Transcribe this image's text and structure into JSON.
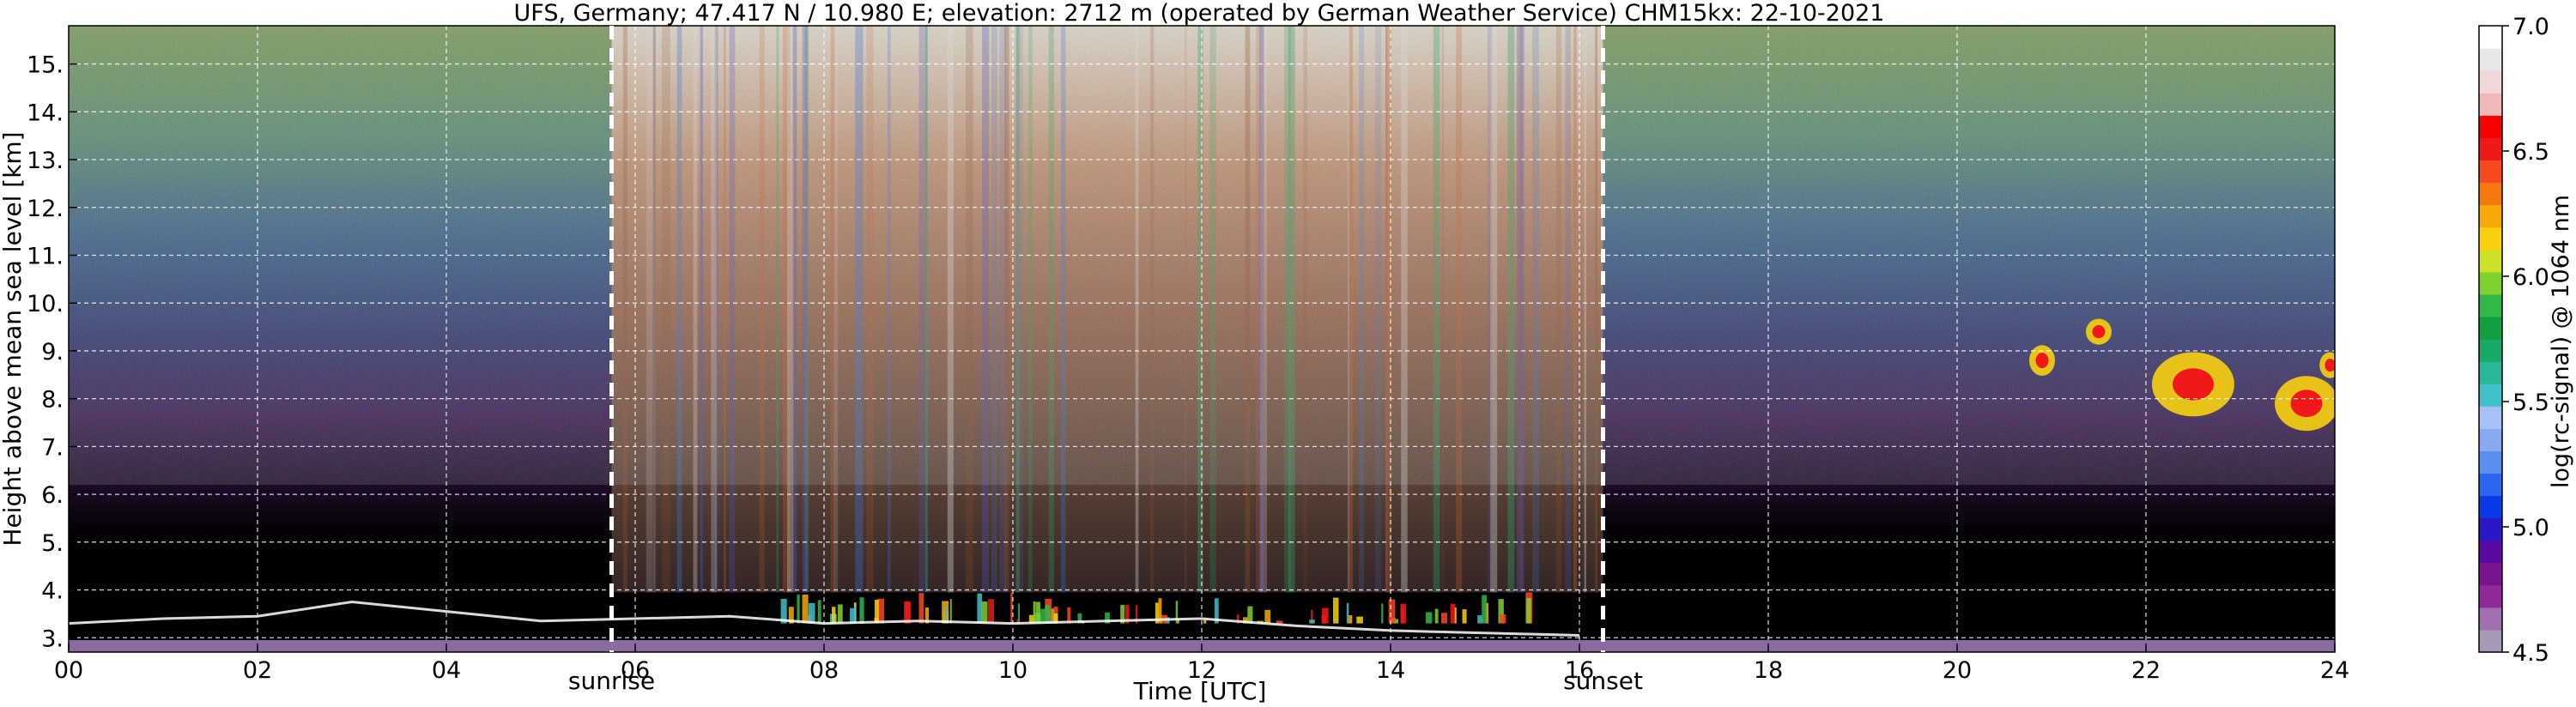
{
  "chart_data": {
    "type": "heatmap",
    "title": "UFS, Germany; 47.417 N / 10.980 E; elevation: 2712 m  (operated by German Weather Service)     CHM15kx: 22-10-2021",
    "xlabel": "Time [UTC]",
    "ylabel": "Height above mean sea level [km]",
    "xlim": [
      0,
      24
    ],
    "ylim": [
      2.7,
      15.8
    ],
    "x_ticks": [
      0,
      2,
      4,
      6,
      8,
      10,
      12,
      14,
      16,
      18,
      20,
      22,
      24
    ],
    "x_tick_labels": [
      "00",
      "02",
      "04",
      "06",
      "08",
      "10",
      "12",
      "14",
      "16",
      "18",
      "20",
      "22",
      "24"
    ],
    "y_ticks": [
      3,
      4,
      5,
      6,
      7,
      8,
      9,
      10,
      11,
      12,
      13,
      14,
      15
    ],
    "y_tick_labels": [
      "3.",
      "4.",
      "5.",
      "6.",
      "7.",
      "8.",
      "9.",
      "10.",
      "11.",
      "12.",
      "13.",
      "14.",
      "15."
    ],
    "grid": true,
    "annotations": [
      {
        "label": "sunrise",
        "x": 5.75
      },
      {
        "label": "sunset",
        "x": 16.25
      }
    ],
    "colorbar": {
      "label": "log(rc-signal) @ 1064 nm",
      "range": [
        4.5,
        7.0
      ],
      "ticks": [
        4.5,
        5.0,
        5.5,
        6.0,
        6.5,
        7.0
      ],
      "tick_labels": [
        "4.5",
        "5.0",
        "5.5",
        "6.0",
        "6.5",
        "7.0"
      ],
      "colors": [
        "#a898b8",
        "#a070b0",
        "#902a9a",
        "#7a148e",
        "#5a0aa0",
        "#2a18c8",
        "#0a3ae8",
        "#2a66f0",
        "#5a8ef0",
        "#88aaf0",
        "#a8c0f8",
        "#40c0c8",
        "#28b898",
        "#18a868",
        "#10a040",
        "#30b848",
        "#80d030",
        "#d0e028",
        "#f8d010",
        "#f8a808",
        "#f87810",
        "#f84820",
        "#f01818",
        "#f80000",
        "#f0b8b8",
        "#f0d8d8",
        "#e8e8e8",
        "#ffffff"
      ]
    },
    "boundary_layer_top_km": [
      {
        "x": 0.0,
        "y": 3.3
      },
      {
        "x": 1.0,
        "y": 3.4
      },
      {
        "x": 2.0,
        "y": 3.45
      },
      {
        "x": 3.0,
        "y": 3.75
      },
      {
        "x": 4.0,
        "y": 3.55
      },
      {
        "x": 5.0,
        "y": 3.35
      },
      {
        "x": 6.0,
        "y": 3.4
      },
      {
        "x": 7.0,
        "y": 3.45
      },
      {
        "x": 8.0,
        "y": 3.3
      },
      {
        "x": 9.0,
        "y": 3.35
      },
      {
        "x": 10.0,
        "y": 3.3
      },
      {
        "x": 11.0,
        "y": 3.35
      },
      {
        "x": 12.0,
        "y": 3.4
      },
      {
        "x": 13.0,
        "y": 3.25
      },
      {
        "x": 14.0,
        "y": 3.15
      },
      {
        "x": 15.0,
        "y": 3.1
      },
      {
        "x": 16.0,
        "y": 3.05
      }
    ],
    "aerosol_layer_top_km": 3.95,
    "clouds": [
      {
        "x": 20.9,
        "y": 8.8,
        "w": 0.2,
        "h": 0.5
      },
      {
        "x": 21.5,
        "y": 9.4,
        "w": 0.2,
        "h": 0.4
      },
      {
        "x": 22.5,
        "y": 8.3,
        "w": 0.8,
        "h": 1.2
      },
      {
        "x": 23.7,
        "y": 7.9,
        "w": 0.6,
        "h": 1.0
      },
      {
        "x": 23.95,
        "y": 8.7,
        "w": 0.15,
        "h": 0.4
      }
    ]
  }
}
